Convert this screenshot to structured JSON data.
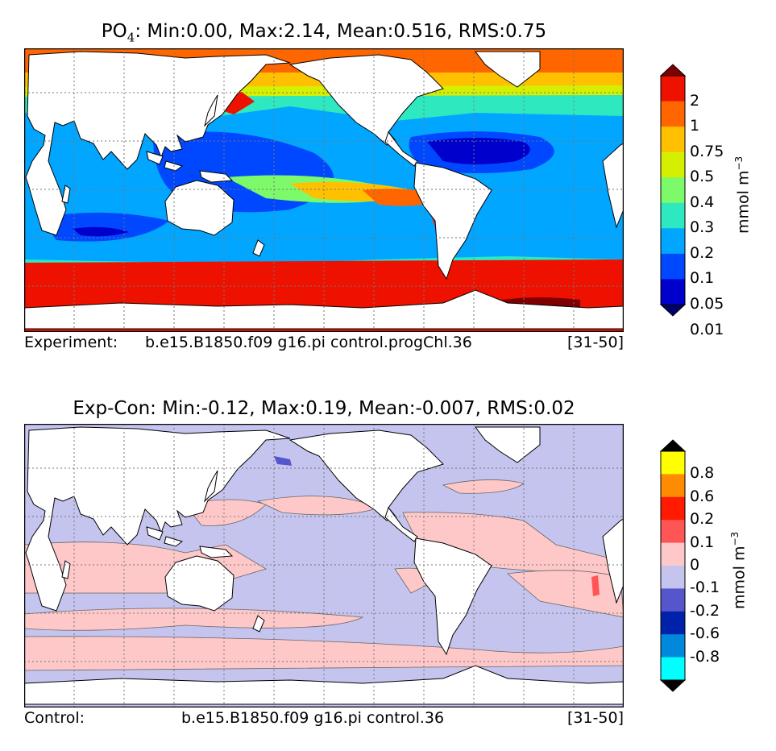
{
  "panels": [
    {
      "title_prefix": "PO",
      "title_sub": "4",
      "title_rest": ": Min:0.00, Max:2.14, Mean:0.516, RMS:0.75",
      "caption": {
        "label": "Experiment:",
        "run": "b.e15.B1850.f09 g16.pi control.progChl.36",
        "years": "[31-50]"
      },
      "colorbar": {
        "unit": "mmol m",
        "unit_exp": "−3",
        "ticks": [
          "2",
          "1",
          "0.75",
          "0.5",
          "0.4",
          "0.3",
          "0.2",
          "0.1",
          "0.05",
          "0.01"
        ],
        "colors": [
          "#7f0000",
          "#ee1100",
          "#ff6600",
          "#ffc000",
          "#d4f000",
          "#7cfa6a",
          "#2ee8c0",
          "#00a6ff",
          "#0048ff",
          "#0000cc",
          "#00006a"
        ]
      }
    },
    {
      "title": "Exp-Con: Min:-0.12, Max:0.19, Mean:-0.007, RMS:0.02",
      "caption": {
        "label": "Control:",
        "run": "b.e15.B1850.f09 g16.pi control.36",
        "years": "[31-50]"
      },
      "colorbar": {
        "unit": "mmol m",
        "unit_exp": "−3",
        "ticks": [
          "0.8",
          "0.6",
          "0.2",
          "0.1",
          "0",
          "-0.1",
          "-0.2",
          "-0.6",
          "-0.8"
        ],
        "colors": [
          "#000000",
          "#ffff00",
          "#ff8c00",
          "#ff1a00",
          "#ff5555",
          "#ffc8c8",
          "#c4c4ee",
          "#5555cc",
          "#0022aa",
          "#0088dd",
          "#00ffff",
          "#000000"
        ]
      }
    }
  ]
}
